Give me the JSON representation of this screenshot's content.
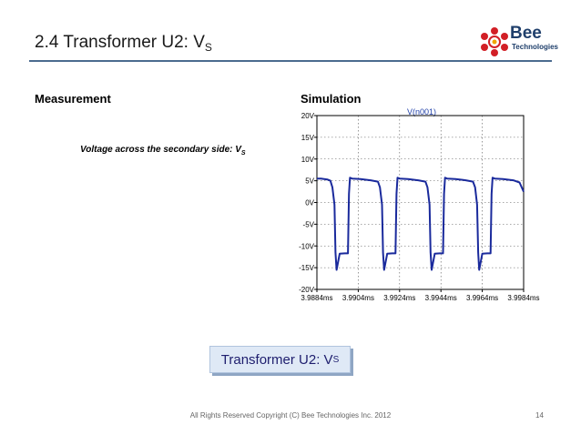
{
  "slide": {
    "title": "2.4 Transformer U2: V",
    "title_sub": "S",
    "logo_name": "Bee",
    "logo_sub": "Technologies",
    "measurement_header": "Measurement",
    "simulation_header": "Simulation",
    "voltage_label": "Voltage across the secondary side: V",
    "voltage_label_sub": "S",
    "button_label": "Transformer U2: V",
    "button_label_sub": "S",
    "footer": "All Rights Reserved Copyright (C) Bee Technologies Inc. 2012",
    "page_number": "14",
    "accent_color": "#4b6b8f",
    "trace_color": "#1a2a9c"
  },
  "chart_data": {
    "type": "line",
    "title": "V(n001)",
    "xlabel": "",
    "ylabel": "",
    "x_unit": "ms",
    "xlim": [
      3.9884,
      3.9984
    ],
    "ylim": [
      -20,
      20
    ],
    "xticks": [
      "3.9884ms",
      "3.9904ms",
      "3.9924ms",
      "3.9944ms",
      "3.9964ms",
      "3.9984ms"
    ],
    "xtick_values": [
      3.9884,
      3.9904,
      3.9924,
      3.9944,
      3.9964,
      3.9984
    ],
    "yticks": [
      "20V",
      "15V",
      "10V",
      "5V",
      "0V",
      "-5V",
      "-10V",
      "-15V",
      "-20V"
    ],
    "ytick_values": [
      20,
      15,
      10,
      5,
      0,
      -5,
      -10,
      -15,
      -20
    ],
    "grid": true,
    "series": [
      {
        "name": "V(n001)",
        "x": [
          3.9884,
          3.9886,
          3.9889,
          3.98905,
          3.98915,
          3.98925,
          3.9893,
          3.98935,
          3.9895,
          3.98975,
          3.9899,
          3.98995,
          3.99,
          3.9901,
          3.9905,
          3.991,
          3.99135,
          3.99145,
          3.99155,
          3.9916,
          3.99165,
          3.9918,
          3.99205,
          3.9922,
          3.99225,
          3.9923,
          3.9924,
          3.9928,
          3.9933,
          3.99365,
          3.99375,
          3.99385,
          3.9939,
          3.99395,
          3.9941,
          3.99435,
          3.9945,
          3.99455,
          3.9946,
          3.9947,
          3.9951,
          3.9956,
          3.99595,
          3.99605,
          3.99615,
          3.9962,
          3.99625,
          3.9964,
          3.99665,
          3.9968,
          3.99685,
          3.9969,
          3.997,
          3.9974,
          3.9979,
          3.9982,
          3.9984
        ],
        "y": [
          5.5,
          5.5,
          5.3,
          5.0,
          3.5,
          -0.5,
          -11.5,
          -15.5,
          -11.8,
          -11.7,
          -11.7,
          2.0,
          5.7,
          5.5,
          5.4,
          5.1,
          4.8,
          3.5,
          -0.5,
          -11.5,
          -15.5,
          -11.8,
          -11.7,
          -11.7,
          2.0,
          5.7,
          5.5,
          5.4,
          5.1,
          4.8,
          3.5,
          -0.5,
          -11.5,
          -15.5,
          -11.8,
          -11.7,
          -11.7,
          2.0,
          5.7,
          5.5,
          5.4,
          5.1,
          4.8,
          3.5,
          -0.5,
          -11.5,
          -15.5,
          -11.8,
          -11.7,
          -11.7,
          2.0,
          5.7,
          5.5,
          5.4,
          5.1,
          4.6,
          2.5
        ]
      }
    ]
  }
}
